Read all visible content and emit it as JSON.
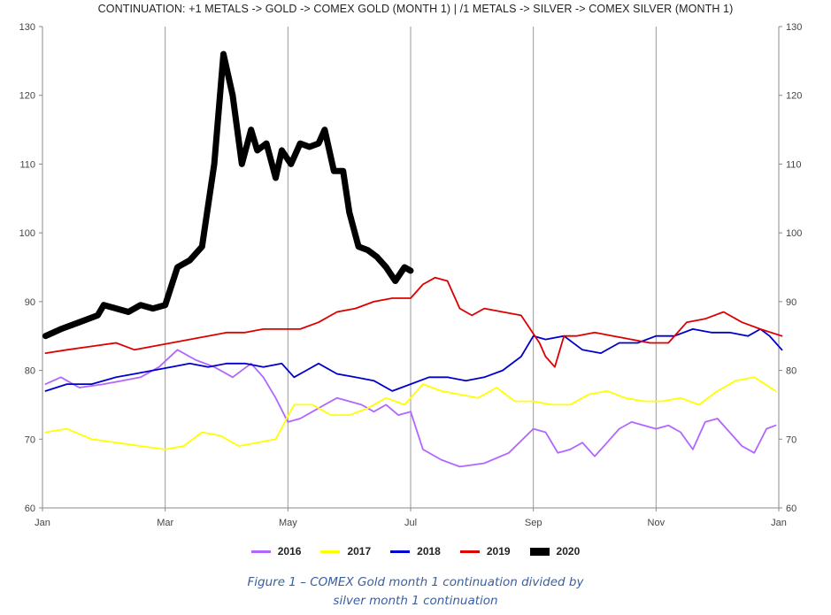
{
  "chart_data": {
    "type": "line",
    "title": "CONTINUATION: +1 METALS -> GOLD -> COMEX GOLD (MONTH 1) | /1 METALS -> SILVER -> COMEX SILVER (MONTH 1)",
    "xlabel": "",
    "ylabel": "",
    "ylim": [
      60,
      130
    ],
    "yticks": [
      "60",
      "70",
      "80",
      "90",
      "100",
      "110",
      "120",
      "130"
    ],
    "xticks": [
      "Jan",
      "Mar",
      "May",
      "Jul",
      "Sep",
      "Nov",
      "Jan"
    ],
    "x_unit": "month of year (0 = Jan 1, 12 = following Jan 1)",
    "grid": "vertical lines at ticks",
    "legend_position": "bottom",
    "series": [
      {
        "name": "2016",
        "color": "#b266ff",
        "x": [
          0.05,
          0.3,
          0.6,
          1.0,
          1.3,
          1.6,
          1.9,
          2.2,
          2.5,
          2.8,
          3.1,
          3.4,
          3.6,
          3.8,
          4.0,
          4.2,
          4.4,
          4.6,
          4.8,
          5.0,
          5.2,
          5.4,
          5.6,
          5.8,
          6.0,
          6.2,
          6.5,
          6.8,
          7.2,
          7.6,
          8.0,
          8.2,
          8.4,
          8.6,
          8.8,
          9.0,
          9.2,
          9.4,
          9.6,
          9.8,
          10.0,
          10.2,
          10.4,
          10.6,
          10.8,
          11.0,
          11.2,
          11.4,
          11.6,
          11.8,
          11.95
        ],
        "values": [
          78,
          79,
          77.5,
          78,
          78.5,
          79,
          80.5,
          83,
          81.5,
          80.5,
          79,
          81,
          79,
          76,
          72.5,
          73,
          74,
          75,
          76,
          75.5,
          75,
          74,
          75,
          73.5,
          74,
          68.5,
          67,
          66,
          66.5,
          68,
          71.5,
          71,
          68,
          68.5,
          69.5,
          67.5,
          69.5,
          71.5,
          72.5,
          72,
          71.5,
          72,
          71,
          68.5,
          72.5,
          73,
          71,
          69,
          68,
          71.5,
          72
        ]
      },
      {
        "name": "2017",
        "color": "#ffff00",
        "x": [
          0.05,
          0.4,
          0.8,
          1.2,
          1.6,
          2.0,
          2.3,
          2.6,
          2.9,
          3.2,
          3.5,
          3.8,
          4.1,
          4.4,
          4.7,
          5.0,
          5.3,
          5.6,
          5.9,
          6.2,
          6.5,
          6.8,
          7.1,
          7.4,
          7.7,
          8.0,
          8.3,
          8.6,
          8.9,
          9.2,
          9.5,
          9.8,
          10.1,
          10.4,
          10.7,
          11.0,
          11.3,
          11.6,
          11.95
        ],
        "values": [
          71,
          71.5,
          70,
          69.5,
          69,
          68.5,
          69,
          71,
          70.5,
          69,
          69.5,
          70,
          75,
          75,
          73.5,
          73.5,
          74.5,
          76,
          75,
          78,
          77,
          76.5,
          76,
          77.5,
          75.5,
          75.5,
          75,
          75,
          76.5,
          77,
          76,
          75.5,
          75.5,
          76,
          75,
          77,
          78.5,
          79,
          77
        ]
      },
      {
        "name": "2018",
        "color": "#0000cc",
        "x": [
          0.05,
          0.4,
          0.8,
          1.2,
          1.5,
          1.8,
          2.1,
          2.4,
          2.7,
          3.0,
          3.3,
          3.6,
          3.9,
          4.1,
          4.3,
          4.5,
          4.8,
          5.1,
          5.4,
          5.7,
          6.0,
          6.3,
          6.6,
          6.9,
          7.2,
          7.5,
          7.8,
          8.0,
          8.2,
          8.5,
          8.8,
          9.1,
          9.4,
          9.7,
          10.0,
          10.3,
          10.6,
          10.9,
          11.2,
          11.5,
          11.7,
          11.85,
          12.05
        ],
        "values": [
          77,
          78,
          78,
          79,
          79.5,
          80,
          80.5,
          81,
          80.5,
          81,
          81,
          80.5,
          81,
          79,
          80,
          81,
          79.5,
          79,
          78.5,
          77,
          78,
          79,
          79,
          78.5,
          79,
          80,
          82,
          85,
          84.5,
          85,
          83,
          82.5,
          84,
          84,
          85,
          85,
          86,
          85.5,
          85.5,
          85,
          86,
          85,
          83
        ]
      },
      {
        "name": "2019",
        "color": "#dd0000",
        "x": [
          0.05,
          0.4,
          0.8,
          1.2,
          1.5,
          1.8,
          2.1,
          2.4,
          2.7,
          3.0,
          3.3,
          3.6,
          3.9,
          4.2,
          4.5,
          4.8,
          5.1,
          5.4,
          5.7,
          6.0,
          6.2,
          6.4,
          6.6,
          6.8,
          7.0,
          7.2,
          7.5,
          7.8,
          8.1,
          8.2,
          8.35,
          8.5,
          8.7,
          9.0,
          9.3,
          9.6,
          9.9,
          10.2,
          10.5,
          10.8,
          11.1,
          11.4,
          11.7,
          12.05
        ],
        "values": [
          82.5,
          83,
          83.5,
          84,
          83,
          83.5,
          84,
          84.5,
          85,
          85.5,
          85.5,
          86,
          86,
          86,
          87,
          88.5,
          89,
          90,
          90.5,
          90.5,
          92.5,
          93.5,
          93,
          89,
          88,
          89,
          88.5,
          88,
          84,
          82,
          80.5,
          85,
          85,
          85.5,
          85,
          84.5,
          84,
          84,
          87,
          87.5,
          88.5,
          87,
          86,
          85
        ]
      },
      {
        "name": "2020",
        "color": "#000000",
        "x": [
          0.05,
          0.3,
          0.6,
          0.9,
          1.0,
          1.2,
          1.4,
          1.6,
          1.8,
          2.0,
          2.2,
          2.4,
          2.6,
          2.8,
          2.95,
          3.1,
          3.25,
          3.4,
          3.5,
          3.65,
          3.8,
          3.9,
          4.05,
          4.2,
          4.35,
          4.5,
          4.6,
          4.75,
          4.9,
          5.0,
          5.15,
          5.3,
          5.45,
          5.6,
          5.75,
          5.9,
          6.0
        ],
        "values": [
          85,
          86,
          87,
          88,
          89.5,
          89,
          88.5,
          89.5,
          89,
          89.5,
          95,
          96,
          98,
          110,
          126,
          120,
          110,
          115,
          112,
          113,
          108,
          112,
          110,
          113,
          112.5,
          113,
          115,
          109,
          109,
          103,
          98,
          97.5,
          96.5,
          95,
          93,
          95,
          94.5
        ]
      }
    ]
  },
  "legend": {
    "items": [
      {
        "label": "2016",
        "color": "#b266ff"
      },
      {
        "label": "2017",
        "color": "#ffff00"
      },
      {
        "label": "2018",
        "color": "#0000cc"
      },
      {
        "label": "2019",
        "color": "#dd0000"
      },
      {
        "label": "2020",
        "color": "#000000"
      }
    ]
  },
  "caption": {
    "line1": "Figure 1 – COMEX Gold month 1 continuation divided by",
    "line2": "silver month 1 continuation"
  }
}
